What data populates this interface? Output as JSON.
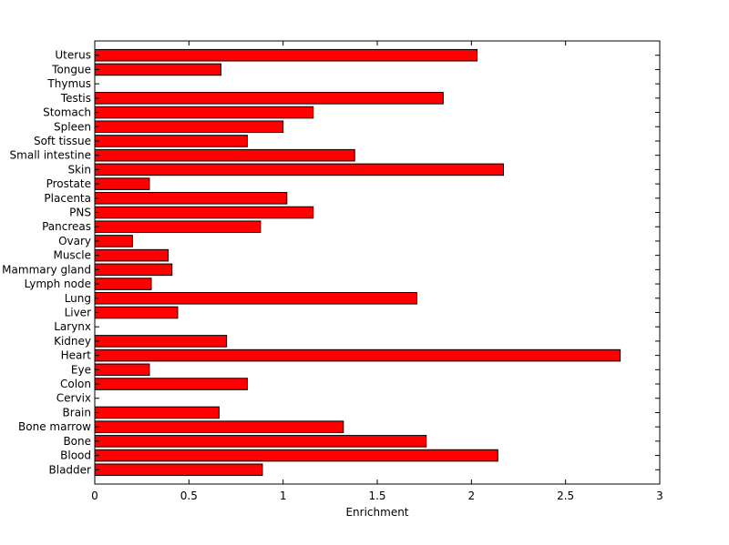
{
  "chart_data": {
    "type": "bar",
    "orientation": "horizontal",
    "title": "",
    "xlabel": "Enrichment",
    "ylabel": "",
    "xlim": [
      0,
      3
    ],
    "xticks": [
      "0",
      "0.5",
      "1",
      "1.5",
      "2",
      "2.5",
      "3"
    ],
    "grid": false,
    "legend": "none",
    "bar_color": "#ff0000",
    "categories": [
      "Uterus",
      "Tongue",
      "Thymus",
      "Testis",
      "Stomach",
      "Spleen",
      "Soft tissue",
      "Small intestine",
      "Skin",
      "Prostate",
      "Placenta",
      "PNS",
      "Pancreas",
      "Ovary",
      "Muscle",
      "Mammary gland",
      "Lymph node",
      "Lung",
      "Liver",
      "Larynx",
      "Kidney",
      "Heart",
      "Eye",
      "Colon",
      "Cervix",
      "Brain",
      "Bone marrow",
      "Bone",
      "Blood",
      "Bladder"
    ],
    "values": [
      2.03,
      0.67,
      0.0,
      1.85,
      1.16,
      1.0,
      0.81,
      1.38,
      2.17,
      0.29,
      1.02,
      1.16,
      0.88,
      0.2,
      0.39,
      0.41,
      0.3,
      1.71,
      0.44,
      0.0,
      0.7,
      2.79,
      0.29,
      0.81,
      0.0,
      0.66,
      1.32,
      1.76,
      2.14,
      0.89
    ]
  }
}
